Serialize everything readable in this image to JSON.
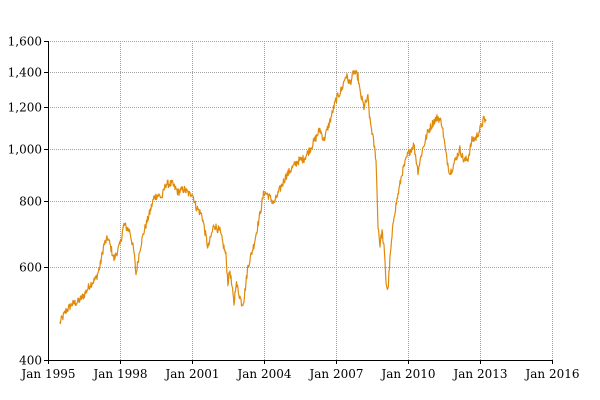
{
  "chart_data": {
    "type": "line",
    "title": "",
    "xlabel": "",
    "ylabel": "",
    "y_scale": "log",
    "ylim": [
      400,
      1600
    ],
    "xlim": [
      "1995-01-01",
      "2016-01-01"
    ],
    "grid": true,
    "legend": "none",
    "y_ticks": [
      {
        "value": 400,
        "label": "400"
      },
      {
        "value": 600,
        "label": "600"
      },
      {
        "value": 800,
        "label": "800"
      },
      {
        "value": 1000,
        "label": "1,000"
      },
      {
        "value": 1200,
        "label": "1,200"
      },
      {
        "value": 1400,
        "label": "1,400"
      },
      {
        "value": 1600,
        "label": "1,600"
      }
    ],
    "x_ticks": [
      {
        "value": "1995-01-01",
        "label": "Jan 1995"
      },
      {
        "value": "1998-01-01",
        "label": "Jan 1998"
      },
      {
        "value": "2001-01-01",
        "label": "Jan 2001"
      },
      {
        "value": "2004-01-01",
        "label": "Jan 2004"
      },
      {
        "value": "2007-01-01",
        "label": "Jan 2007"
      },
      {
        "value": "2010-01-01",
        "label": "Jan 2010"
      },
      {
        "value": "2013-01-01",
        "label": "Jan 2013"
      },
      {
        "value": "2016-01-01",
        "label": "Jan 2016"
      }
    ],
    "series": [
      {
        "color": "#e08a0b",
        "points": [
          [
            "1995-07-01",
            470
          ],
          [
            "1995-10-01",
            495
          ],
          [
            "1996-01-01",
            510
          ],
          [
            "1996-04-01",
            515
          ],
          [
            "1996-07-01",
            530
          ],
          [
            "1996-10-01",
            555
          ],
          [
            "1997-01-01",
            570
          ],
          [
            "1997-03-01",
            600
          ],
          [
            "1997-05-01",
            660
          ],
          [
            "1997-07-01",
            680
          ],
          [
            "1997-09-01",
            640
          ],
          [
            "1997-10-01",
            620
          ],
          [
            "1998-01-01",
            660
          ],
          [
            "1998-03-01",
            720
          ],
          [
            "1998-06-01",
            700
          ],
          [
            "1998-08-01",
            640
          ],
          [
            "1998-09-01",
            580
          ],
          [
            "1998-11-01",
            650
          ],
          [
            "1999-01-01",
            700
          ],
          [
            "1999-04-01",
            760
          ],
          [
            "1999-06-01",
            810
          ],
          [
            "1999-08-01",
            820
          ],
          [
            "1999-10-01",
            810
          ],
          [
            "1999-12-01",
            860
          ],
          [
            "2000-03-01",
            860
          ],
          [
            "2000-06-01",
            830
          ],
          [
            "2000-09-01",
            840
          ],
          [
            "2000-12-01",
            820
          ],
          [
            "2001-01-01",
            830
          ],
          [
            "2001-03-01",
            780
          ],
          [
            "2001-06-01",
            750
          ],
          [
            "2001-09-01",
            650
          ],
          [
            "2001-12-01",
            720
          ],
          [
            "2002-03-01",
            700
          ],
          [
            "2002-06-01",
            630
          ],
          [
            "2002-07-01",
            560
          ],
          [
            "2002-08-01",
            590
          ],
          [
            "2002-10-01",
            510
          ],
          [
            "2002-11-01",
            560
          ],
          [
            "2003-02-01",
            510
          ],
          [
            "2003-03-01",
            520
          ],
          [
            "2003-05-01",
            600
          ],
          [
            "2003-08-01",
            660
          ],
          [
            "2003-10-01",
            720
          ],
          [
            "2004-01-01",
            830
          ],
          [
            "2004-03-01",
            820
          ],
          [
            "2004-06-01",
            790
          ],
          [
            "2004-09-01",
            840
          ],
          [
            "2004-12-01",
            890
          ],
          [
            "2005-03-01",
            920
          ],
          [
            "2005-06-01",
            950
          ],
          [
            "2005-09-01",
            960
          ],
          [
            "2005-12-01",
            1000
          ],
          [
            "2006-03-01",
            1050
          ],
          [
            "2006-05-01",
            1090
          ],
          [
            "2006-07-01",
            1040
          ],
          [
            "2006-10-01",
            1130
          ],
          [
            "2007-01-01",
            1240
          ],
          [
            "2007-04-01",
            1300
          ],
          [
            "2007-06-01",
            1380
          ],
          [
            "2007-08-01",
            1330
          ],
          [
            "2007-10-01",
            1400
          ],
          [
            "2007-12-01",
            1370
          ],
          [
            "2008-01-01",
            1280
          ],
          [
            "2008-03-01",
            1200
          ],
          [
            "2008-05-01",
            1250
          ],
          [
            "2008-06-01",
            1130
          ],
          [
            "2008-07-01",
            1080
          ],
          [
            "2008-09-01",
            960
          ],
          [
            "2008-10-01",
            720
          ],
          [
            "2008-11-01",
            660
          ],
          [
            "2008-12-01",
            700
          ],
          [
            "2009-01-01",
            650
          ],
          [
            "2009-02-01",
            560
          ],
          [
            "2009-03-01",
            540
          ],
          [
            "2009-04-01",
            620
          ],
          [
            "2009-06-01",
            750
          ],
          [
            "2009-08-01",
            820
          ],
          [
            "2009-10-01",
            900
          ],
          [
            "2010-01-01",
            980
          ],
          [
            "2010-04-01",
            1020
          ],
          [
            "2010-06-01",
            910
          ],
          [
            "2010-08-01",
            990
          ],
          [
            "2010-11-01",
            1080
          ],
          [
            "2011-02-01",
            1130
          ],
          [
            "2011-04-01",
            1150
          ],
          [
            "2011-06-01",
            1120
          ],
          [
            "2011-08-01",
            980
          ],
          [
            "2011-10-01",
            900
          ],
          [
            "2011-12-01",
            940
          ],
          [
            "2012-03-01",
            1000
          ],
          [
            "2012-05-01",
            950
          ],
          [
            "2012-07-01",
            960
          ],
          [
            "2012-09-01",
            1040
          ],
          [
            "2012-11-01",
            1050
          ],
          [
            "2013-01-01",
            1090
          ],
          [
            "2013-03-01",
            1140
          ],
          [
            "2013-04-01",
            1130
          ]
        ]
      }
    ]
  }
}
